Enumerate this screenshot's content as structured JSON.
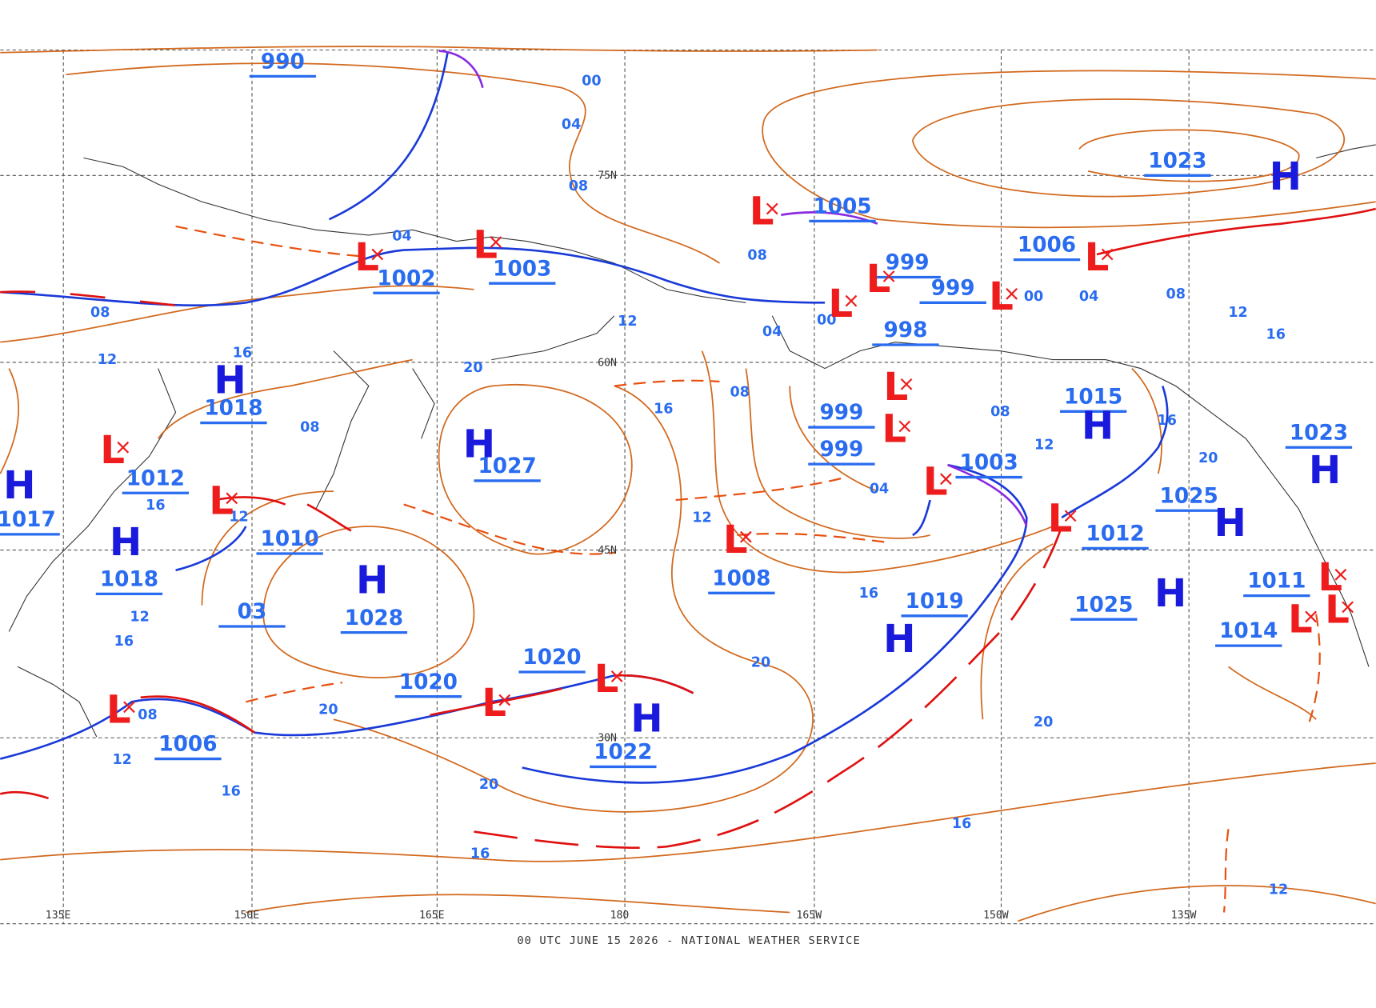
{
  "caption": "00 UTC JUNE 15 2026 - NATIONAL WEATHER SERVICE",
  "longitudes": [
    "135E",
    "150E",
    "165E",
    "180",
    "165W",
    "150W",
    "135W"
  ],
  "latitudes": [
    "75N",
    "60N",
    "45N",
    "30N"
  ],
  "center_symbols": [
    "H",
    "H",
    "H",
    "H",
    "H",
    "H",
    "H",
    "H",
    "H",
    "H",
    "H",
    "H",
    "L",
    "L",
    "L",
    "L",
    "L",
    "L",
    "L",
    "L",
    "L",
    "L",
    "L",
    "L",
    "L",
    "L",
    "L",
    "L",
    "L",
    "L",
    "L",
    "L"
  ],
  "pressure_labels": [
    "990",
    "1002",
    "1003",
    "1005",
    "999",
    "999",
    "998",
    "1006",
    "1023",
    "1018",
    "1012",
    "1017",
    "1018",
    "1010",
    "03",
    "1028",
    "1027",
    "1020",
    "1020",
    "1022",
    "1006",
    "1008",
    "999",
    "999",
    "1003",
    "1015",
    "1012",
    "1025",
    "1025",
    "1019",
    "1023",
    "1011",
    "1014"
  ],
  "isobar_labels": [
    "00",
    "04",
    "08",
    "04",
    "08",
    "12",
    "16",
    "08",
    "16",
    "12",
    "12",
    "16",
    "08",
    "12",
    "16",
    "20",
    "20",
    "16",
    "08",
    "12",
    "20",
    "16",
    "20",
    "16",
    "04",
    "08",
    "12",
    "16",
    "20",
    "20",
    "16",
    "12",
    "08",
    "04",
    "00",
    "00",
    "04",
    "08",
    "12",
    "16",
    "12"
  ]
}
